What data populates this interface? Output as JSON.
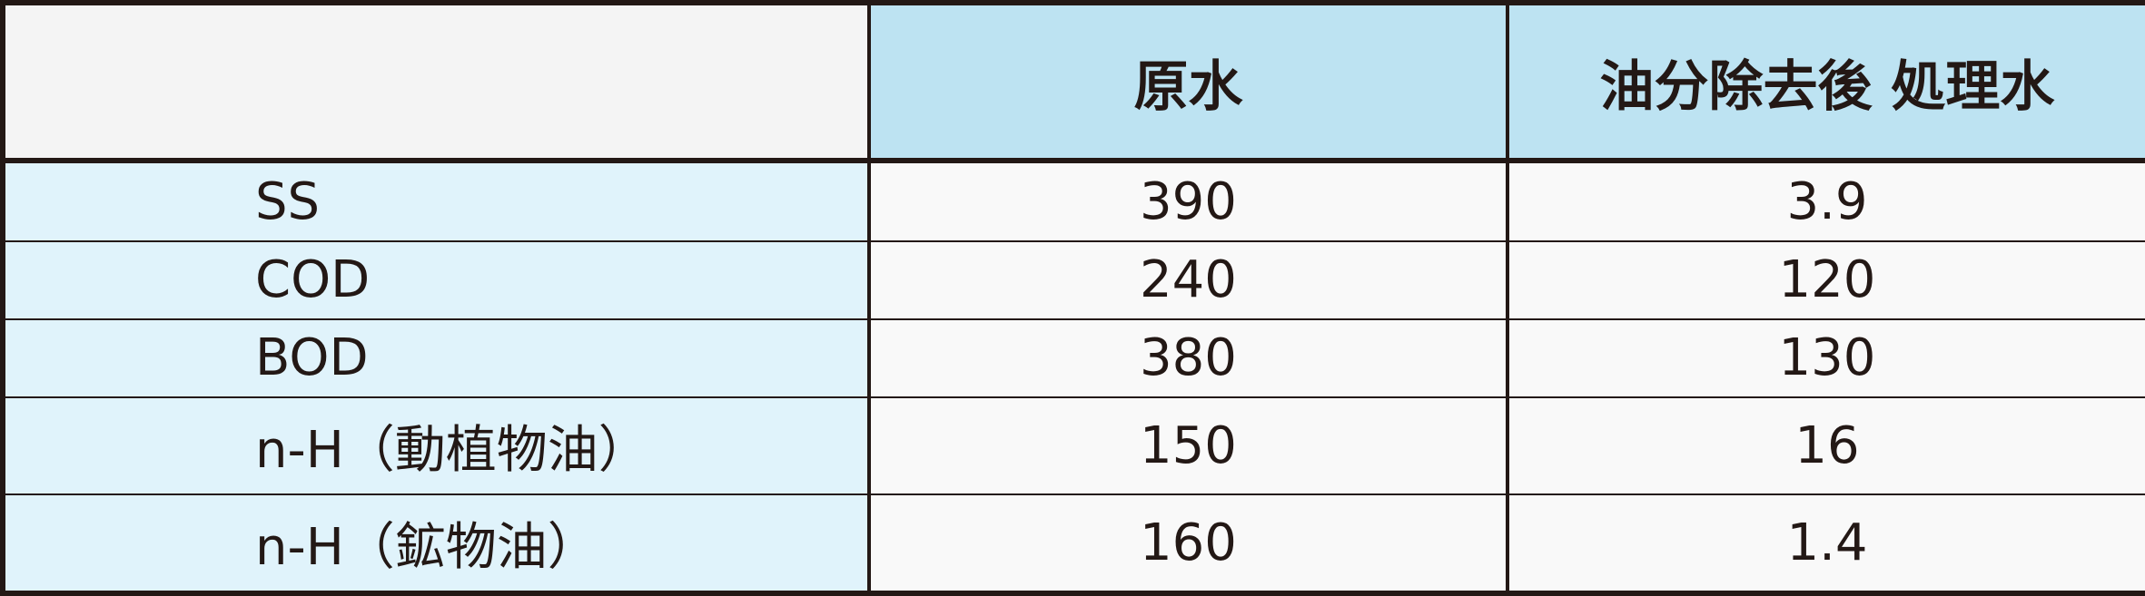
{
  "table": {
    "headers": [
      "",
      "原水",
      "油分除去後 処理水"
    ],
    "rows": [
      {
        "label": "SS",
        "raw": "390",
        "treated": "3.9"
      },
      {
        "label": "COD",
        "raw": "240",
        "treated": "120"
      },
      {
        "label": "BOD",
        "raw": "380",
        "treated": "130"
      },
      {
        "label": "n-H（動植物油）",
        "raw": "150",
        "treated": "16"
      },
      {
        "label": "n-H（鉱物油）",
        "raw": "160",
        "treated": "1.4"
      }
    ],
    "colors": {
      "header_bg": "#bde3f2",
      "label_bg": "#e0f3fb",
      "cell_bg": "#f9f9f9",
      "corner_bg": "#f4f4f4",
      "border": "#231815"
    }
  }
}
